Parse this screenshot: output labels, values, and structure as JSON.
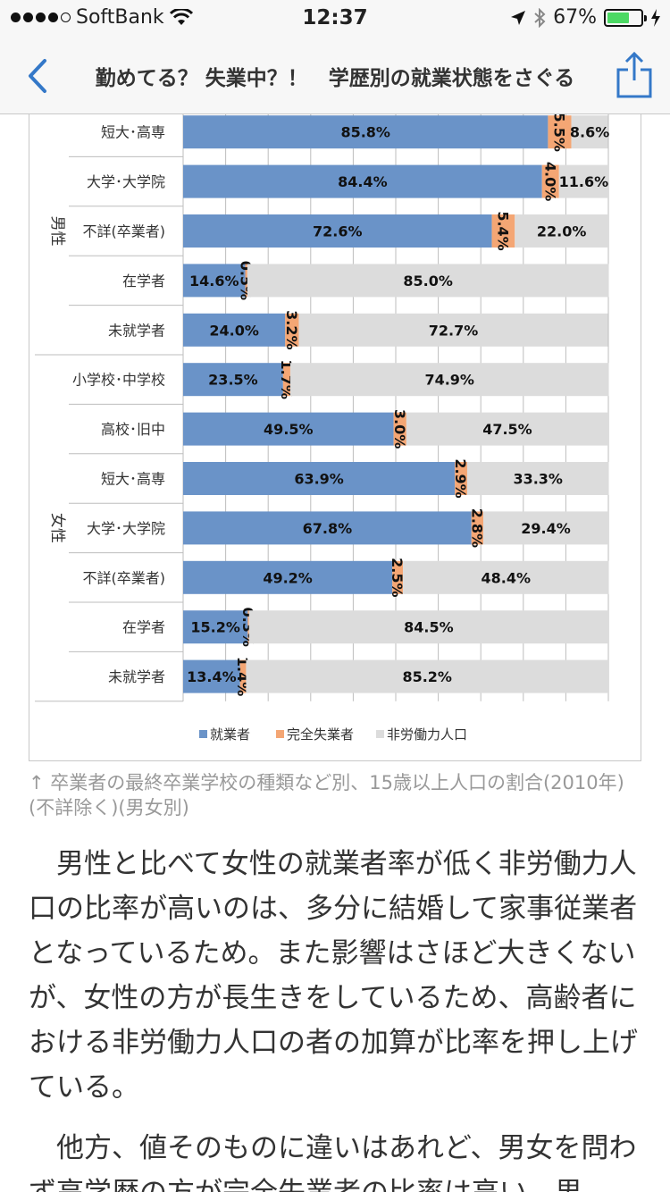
{
  "status": {
    "carrier": "SoftBank",
    "time": "12:37",
    "battery": "67%",
    "battery_level": 0.67
  },
  "nav": {
    "title": "勤めてる？ 失業中？！　学歴別の就業状態をさぐる"
  },
  "chart_data": {
    "type": "bar",
    "orientation": "horizontal",
    "stacked": true,
    "percent": true,
    "groups": [
      {
        "label": "男性",
        "categories": [
          "短大･高専",
          "大学･大学院",
          "不詳(卒業者)",
          "在学者",
          "未就学者"
        ]
      },
      {
        "label": "女性",
        "categories": [
          "小学校･中学校",
          "高校･旧中",
          "短大･高専",
          "大学･大学院",
          "不詳(卒業者)",
          "在学者",
          "未就学者"
        ]
      }
    ],
    "categories": [
      "短大･高専",
      "大学･大学院",
      "不詳(卒業者)",
      "在学者",
      "未就学者",
      "小学校･中学校",
      "高校･旧中",
      "短大･高専",
      "大学･大学院",
      "不詳(卒業者)",
      "在学者",
      "未就学者"
    ],
    "series": [
      {
        "name": "就業者",
        "color": "#6a93c8",
        "values": [
          85.8,
          84.4,
          72.6,
          14.6,
          24.0,
          23.5,
          49.5,
          63.9,
          67.8,
          49.2,
          15.2,
          13.4
        ]
      },
      {
        "name": "完全失業者",
        "color": "#f4a674",
        "values": [
          5.5,
          4.0,
          5.4,
          0.5,
          3.2,
          1.7,
          3.0,
          2.9,
          2.8,
          2.5,
          0.3,
          1.4
        ]
      },
      {
        "name": "非労働力人口",
        "color": "#dcdcdc",
        "values": [
          8.6,
          11.6,
          22.0,
          85.0,
          72.7,
          74.9,
          47.5,
          33.3,
          29.4,
          48.4,
          84.5,
          85.2
        ]
      }
    ],
    "labels": [
      [
        "85.8%",
        "5.5%",
        "8.6%"
      ],
      [
        "84.4%",
        "4.0%",
        "11.6%"
      ],
      [
        "72.6%",
        "5.4%",
        "22.0%"
      ],
      [
        "14.6%",
        "0.5%",
        "85.0%"
      ],
      [
        "24.0%",
        "3.2%",
        "72.7%"
      ],
      [
        "23.5%",
        "1.7%",
        "74.9%"
      ],
      [
        "49.5%",
        "3.0%",
        "47.5%"
      ],
      [
        "63.9%",
        "2.9%",
        "33.3%"
      ],
      [
        "67.8%",
        "2.8%",
        "29.4%"
      ],
      [
        "49.2%",
        "2.5%",
        "48.4%"
      ],
      [
        "15.2%",
        "0.3%",
        "84.5%"
      ],
      [
        "13.4%",
        "1.4%",
        "85.2%"
      ]
    ],
    "xlim": [
      0,
      100
    ],
    "grid": true,
    "legend": "bottom"
  },
  "caption": "↑ 卒業者の最終卒業学校の種類など別、15歳以上人口の割合(2010年)(不詳除く)(男女別)",
  "paragraphs": [
    "男性と比べて女性の就業者率が低く非労働力人口の比率が高いのは、多分に結婚して家事従業者となっているため。また影響はさほど大きくないが、女性の方が長生きをしているため、高齢者における非労働力人口の者の加算が比率を押し上げている。",
    "他方、値そのものに違いはあれど、男女を問わず高学歴の方が完全失業者の比率は高い。男"
  ]
}
